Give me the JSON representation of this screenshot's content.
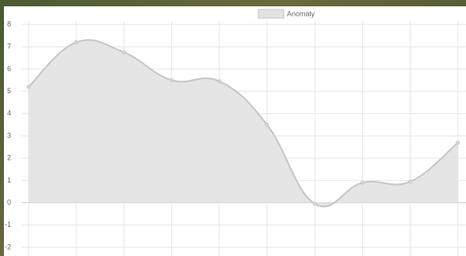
{
  "chart_data": {
    "type": "line",
    "categories": [
      null,
      null,
      null,
      null,
      null,
      null,
      null,
      null,
      null,
      null
    ],
    "series": [
      {
        "name": "Anomaly",
        "color": "#c6c6c6",
        "fill": "#e2e2e2",
        "values": [
          5.2,
          7.2,
          6.75,
          5.5,
          5.45,
          3.5,
          -0.05,
          0.9,
          0.95,
          2.7
        ]
      }
    ],
    "ylim": [
      -2,
      8
    ],
    "yticks": [
      -2,
      -1,
      0,
      1,
      2,
      3,
      4,
      5,
      6,
      7,
      8
    ],
    "grid": true
  }
}
